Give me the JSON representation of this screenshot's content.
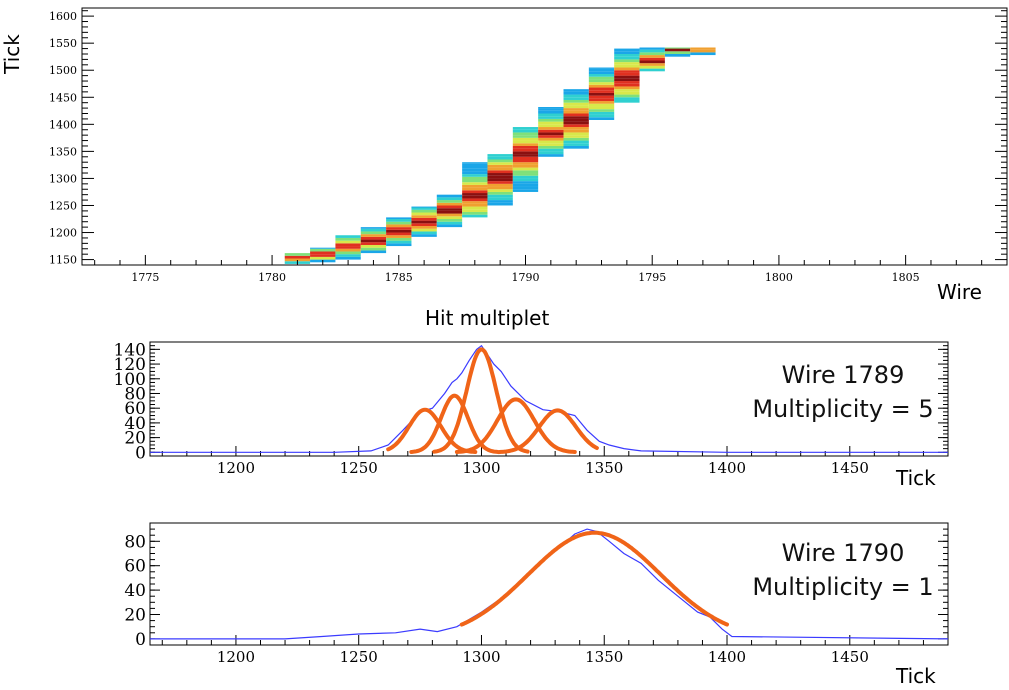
{
  "chart_data": [
    {
      "type": "heatmap",
      "xlabel": "Wire",
      "ylabel": "Tick",
      "xlim": [
        1772.5,
        1809
      ],
      "ylim": [
        1140,
        1615
      ],
      "xticks": [
        1775,
        1780,
        1785,
        1790,
        1795,
        1800,
        1805
      ],
      "yticks": [
        1150,
        1200,
        1250,
        1300,
        1350,
        1400,
        1450,
        1500,
        1550,
        1600
      ],
      "colormap": [
        "#1aa6e8",
        "#2fd0d0",
        "#7fe07a",
        "#d8e84a",
        "#f0a030",
        "#e03020",
        "#8a1010"
      ],
      "columns": [
        {
          "wire": 1781,
          "t0": 1142,
          "t1": 1162,
          "peak": 1150
        },
        {
          "wire": 1782,
          "t0": 1145,
          "t1": 1172,
          "peak": 1157
        },
        {
          "wire": 1783,
          "t0": 1150,
          "t1": 1195,
          "peak": 1172
        },
        {
          "wire": 1784,
          "t0": 1162,
          "t1": 1210,
          "peak": 1183
        },
        {
          "wire": 1785,
          "t0": 1175,
          "t1": 1228,
          "peak": 1200
        },
        {
          "wire": 1786,
          "t0": 1192,
          "t1": 1248,
          "peak": 1218
        },
        {
          "wire": 1787,
          "t0": 1210,
          "t1": 1270,
          "peak": 1238
        },
        {
          "wire": 1788,
          "t0": 1228,
          "t1": 1330,
          "peak": 1265
        },
        {
          "wire": 1789,
          "t0": 1250,
          "t1": 1345,
          "peak": 1300
        },
        {
          "wire": 1790,
          "t0": 1275,
          "t1": 1395,
          "peak": 1342
        },
        {
          "wire": 1791,
          "t0": 1340,
          "t1": 1432,
          "peak": 1380
        },
        {
          "wire": 1792,
          "t0": 1355,
          "t1": 1465,
          "peak": 1405
        },
        {
          "wire": 1793,
          "t0": 1408,
          "t1": 1505,
          "peak": 1452
        },
        {
          "wire": 1794,
          "t0": 1440,
          "t1": 1540,
          "peak": 1482
        },
        {
          "wire": 1795,
          "t0": 1498,
          "t1": 1542,
          "peak": 1515
        },
        {
          "wire": 1796,
          "t0": 1525,
          "t1": 1542,
          "peak": 1535
        },
        {
          "wire": 1797,
          "t0": 1528,
          "t1": 1542,
          "peak": 1535
        }
      ]
    },
    {
      "type": "line",
      "xlabel": "Tick",
      "xlim": [
        1165,
        1490
      ],
      "ylim": [
        -5,
        150
      ],
      "xticks": [
        1200,
        1250,
        1300,
        1350,
        1400,
        1450
      ],
      "yticks": [
        0,
        20,
        40,
        60,
        80,
        100,
        120,
        140
      ],
      "series": [
        {
          "color": "#3b3bff",
          "x": [
            1165,
            1240,
            1255,
            1262,
            1268,
            1275,
            1280,
            1285,
            1288,
            1290,
            1292,
            1295,
            1298,
            1300,
            1302,
            1305,
            1308,
            1312,
            1318,
            1325,
            1332,
            1338,
            1343,
            1348,
            1352,
            1358,
            1365,
            1400,
            1490
          ],
          "y": [
            0,
            0,
            2,
            10,
            30,
            55,
            60,
            80,
            95,
            100,
            108,
            125,
            140,
            145,
            135,
            120,
            110,
            90,
            70,
            58,
            55,
            50,
            30,
            15,
            10,
            5,
            2,
            0,
            0
          ]
        }
      ],
      "fits": {
        "color": "#f06418",
        "gaussians": [
          {
            "mean": 1277,
            "amp": 58,
            "sigma": 6.5
          },
          {
            "mean": 1289,
            "amp": 77,
            "sigma": 5.5
          },
          {
            "mean": 1300,
            "amp": 140,
            "sigma": 6
          },
          {
            "mean": 1314,
            "amp": 72,
            "sigma": 7.5
          },
          {
            "mean": 1331,
            "amp": 57,
            "sigma": 7.5
          }
        ],
        "range": [
          1262,
          1347
        ]
      }
    },
    {
      "type": "line",
      "xlabel": "Tick",
      "xlim": [
        1165,
        1490
      ],
      "ylim": [
        -5,
        95
      ],
      "xticks": [
        1200,
        1250,
        1300,
        1350,
        1400,
        1450
      ],
      "yticks": [
        0,
        20,
        40,
        60,
        80
      ],
      "series": [
        {
          "color": "#3b3bff",
          "x": [
            1165,
            1220,
            1235,
            1250,
            1265,
            1275,
            1282,
            1290,
            1300,
            1310,
            1320,
            1330,
            1338,
            1343,
            1347,
            1352,
            1358,
            1365,
            1372,
            1380,
            1388,
            1393,
            1398,
            1402,
            1490
          ],
          "y": [
            0,
            0,
            2,
            4,
            5,
            8,
            6,
            10,
            22,
            36,
            55,
            72,
            86,
            90,
            88,
            80,
            70,
            62,
            48,
            35,
            22,
            18,
            8,
            2,
            0
          ]
        }
      ],
      "fits": {
        "color": "#f06418",
        "gaussians": [
          {
            "mean": 1346,
            "amp": 87,
            "sigma": 27
          }
        ],
        "range": [
          1292,
          1400
        ]
      }
    }
  ],
  "labels": {
    "top_ylabel": "Tick",
    "top_xlabel": "Wire",
    "section_title": "Hit multiplet",
    "mid_xlabel": "Tick",
    "bot_xlabel": "Tick",
    "mid_annot_line1": "Wire 1789",
    "mid_annot_line2": "Multiplicity = 5",
    "bot_annot_line1": "Wire 1790",
    "bot_annot_line2": "Multiplicity = 1"
  }
}
